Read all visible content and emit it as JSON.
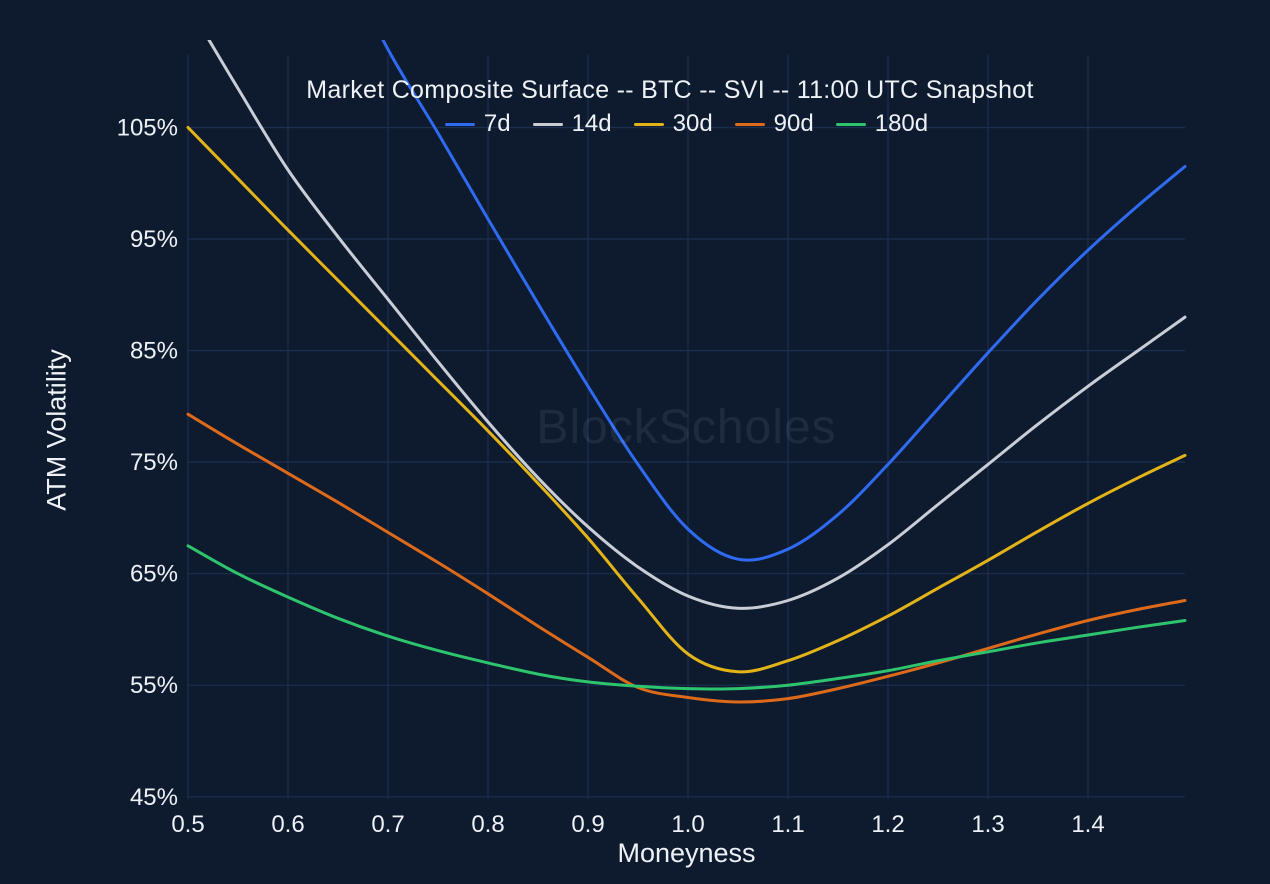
{
  "chart_data": {
    "type": "line",
    "title": "Market Composite Surface -- BTC -- SVI -- 11:00 UTC Snapshot",
    "watermark": "BlockScholes",
    "xlabel": "Moneyness",
    "ylabel": "ATM Volatility",
    "xlim": [
      0.5,
      1.497
    ],
    "ylim": [
      44.8,
      111.5
    ],
    "x_ticks": [
      0.5,
      0.6,
      0.7,
      0.8,
      0.9,
      1.0,
      1.1,
      1.2,
      1.3,
      1.4
    ],
    "x_tick_labels": [
      "0.5",
      "0.6",
      "0.7",
      "0.8",
      "0.9",
      "1.0",
      "1.1",
      "1.2",
      "1.3",
      "1.4"
    ],
    "y_ticks": [
      45,
      55,
      65,
      75,
      85,
      95,
      105
    ],
    "y_tick_labels": [
      "45%",
      "55%",
      "65%",
      "75%",
      "85%",
      "95%",
      "105%"
    ],
    "grid": true,
    "legend_position": "top-center",
    "background_color": "#0e1b2f",
    "grid_color": "#1d2f50",
    "text_color": "#eef1f6",
    "y_unit": "percent_volatility",
    "series": [
      {
        "name": "7d",
        "color": "#2f6bf2",
        "x": [
          0.65,
          0.7,
          0.75,
          0.8,
          0.85,
          0.9,
          0.95,
          1.0,
          1.05,
          1.1,
          1.15,
          1.2,
          1.25,
          1.3,
          1.35,
          1.4,
          1.45,
          1.497
        ],
        "y": [
          121.0,
          112.0,
          104.5,
          96.8,
          89.2,
          81.8,
          74.8,
          69.0,
          66.3,
          67.2,
          70.3,
          74.8,
          79.8,
          84.8,
          89.6,
          94.0,
          98.0,
          101.5
        ]
      },
      {
        "name": "14d",
        "color": "#c9cdd6",
        "x": [
          0.52,
          0.55,
          0.6,
          0.65,
          0.7,
          0.75,
          0.8,
          0.85,
          0.9,
          0.95,
          1.0,
          1.05,
          1.1,
          1.15,
          1.2,
          1.25,
          1.3,
          1.35,
          1.4,
          1.45,
          1.497
        ],
        "y": [
          113.0,
          108.5,
          101.2,
          95.2,
          89.6,
          84.0,
          78.6,
          73.6,
          69.2,
          65.6,
          63.0,
          61.9,
          62.6,
          64.6,
          67.6,
          71.2,
          74.8,
          78.4,
          81.8,
          85.0,
          88.0
        ]
      },
      {
        "name": "30d",
        "color": "#e3b417",
        "x": [
          0.5,
          0.55,
          0.6,
          0.65,
          0.7,
          0.75,
          0.8,
          0.85,
          0.9,
          0.95,
          1.0,
          1.05,
          1.1,
          1.15,
          1.2,
          1.25,
          1.3,
          1.35,
          1.4,
          1.45,
          1.497
        ],
        "y": [
          105.0,
          100.4,
          95.8,
          91.3,
          86.8,
          82.3,
          77.8,
          73.1,
          68.2,
          62.8,
          57.8,
          56.2,
          57.2,
          59.0,
          61.2,
          63.7,
          66.2,
          68.8,
          71.3,
          73.6,
          75.6
        ]
      },
      {
        "name": "90d",
        "color": "#dd6a1a",
        "x": [
          0.5,
          0.55,
          0.6,
          0.65,
          0.7,
          0.75,
          0.8,
          0.85,
          0.9,
          0.95,
          1.0,
          1.05,
          1.1,
          1.15,
          1.2,
          1.25,
          1.3,
          1.35,
          1.4,
          1.45,
          1.497
        ],
        "y": [
          79.3,
          76.6,
          74.0,
          71.4,
          68.7,
          66.0,
          63.2,
          60.3,
          57.5,
          54.8,
          53.9,
          53.5,
          53.8,
          54.7,
          55.8,
          57.0,
          58.3,
          59.6,
          60.8,
          61.8,
          62.6
        ]
      },
      {
        "name": "180d",
        "color": "#2ec46d",
        "x": [
          0.5,
          0.55,
          0.6,
          0.65,
          0.7,
          0.75,
          0.8,
          0.85,
          0.9,
          0.95,
          1.0,
          1.05,
          1.1,
          1.15,
          1.2,
          1.25,
          1.3,
          1.35,
          1.4,
          1.45,
          1.497
        ],
        "y": [
          67.5,
          65.0,
          62.9,
          61.0,
          59.4,
          58.1,
          57.0,
          56.0,
          55.3,
          54.9,
          54.7,
          54.7,
          55.0,
          55.6,
          56.3,
          57.2,
          58.0,
          58.8,
          59.5,
          60.2,
          60.8
        ]
      }
    ]
  }
}
